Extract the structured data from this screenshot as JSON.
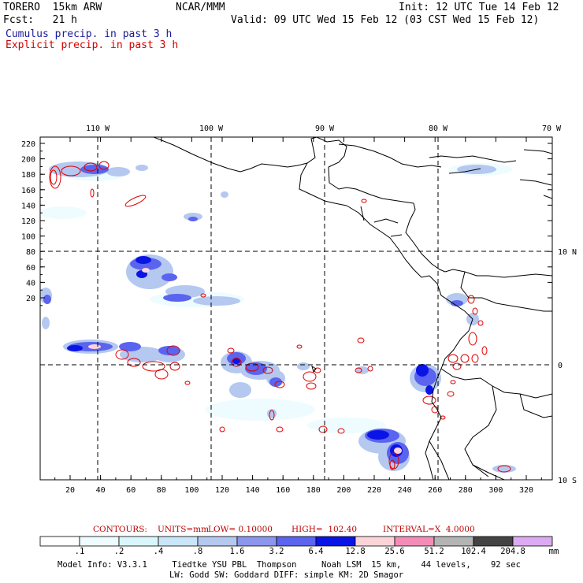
{
  "header": {
    "model": "TORERO  15km ARW",
    "org": "NCAR/MMM",
    "init": "Init: 12 UTC Tue 14 Feb 12",
    "fcst": "Fcst:   21 h",
    "valid": "Valid: 09 UTC Wed 15 Feb 12 (03 CST Wed 15 Feb 12)",
    "legend_cumulus": "Cumulus precip. in past 3 h",
    "legend_explicit": "Explicit precip. in past 3 h"
  },
  "axes": {
    "top_lon_labels": [
      "110 W",
      "100 W",
      "90 W",
      "80 W",
      "70 W"
    ],
    "right_lat_labels": [
      "10 N",
      "0",
      "10 S"
    ],
    "y_ticks": [
      "220",
      "200",
      "180",
      "160",
      "140",
      "120",
      "100",
      "80",
      "60",
      "40",
      "20"
    ],
    "x_ticks": [
      "20",
      "40",
      "60",
      "80",
      "100",
      "120",
      "140",
      "160",
      "180",
      "200",
      "220",
      "240",
      "260",
      "280",
      "300",
      "320"
    ]
  },
  "contours_info": {
    "label": "CONTOURS:",
    "units": "UNITS=mm",
    "low": "LOW= 0.10000",
    "high": "HIGH=  102.40",
    "interval": "INTERVAL=X  4.0000"
  },
  "colorbar": {
    "labels": [
      ".1",
      ".2",
      ".4",
      ".8",
      "1.6",
      "3.2",
      "6.4",
      "12.8",
      "25.6",
      "51.2",
      "102.4",
      "204.8"
    ],
    "unit": "mm",
    "colors": [
      "#ffffff",
      "#eefcff",
      "#d8f6fb",
      "#c8e6f8",
      "#b4c8f0",
      "#8c96ee",
      "#5a64ee",
      "#0a14e6",
      "#fcd4d8",
      "#f48cb8",
      "#b4b4b4",
      "#444444",
      "#dcaaf2"
    ]
  },
  "footer": {
    "line1": "Model Info: V3.3.1     Tiedtke YSU PBL  Thompson     Noah LSM  15 km,    44 levels,    92 sec",
    "line2": "LW: Godd SW: Goddard DIFF: simple KM: 2D Smagor"
  }
}
